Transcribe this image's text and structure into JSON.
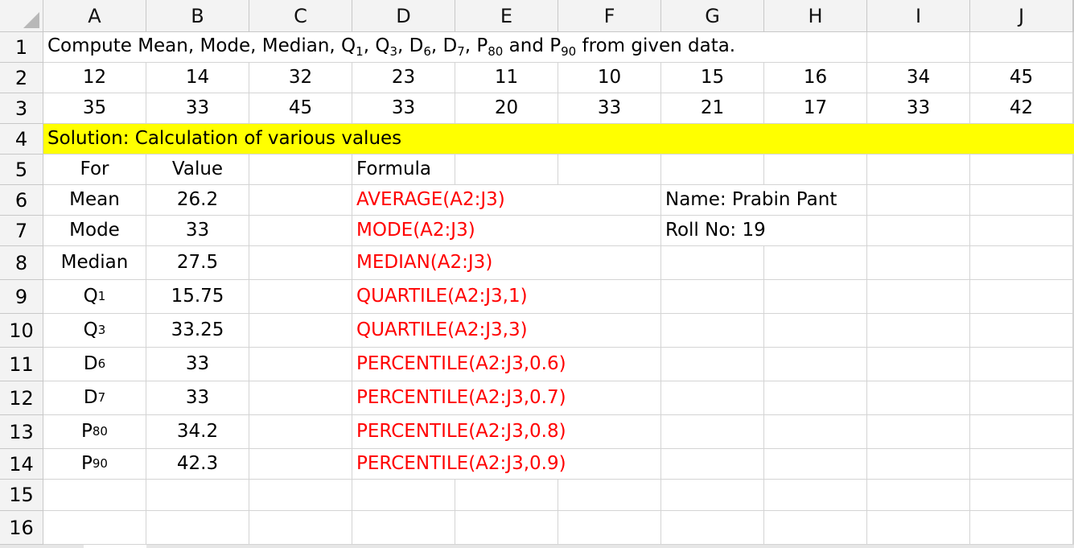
{
  "columns": [
    "A",
    "B",
    "C",
    "D",
    "E",
    "F",
    "G",
    "H",
    "I",
    "J"
  ],
  "rows": [
    "1",
    "2",
    "3",
    "4",
    "5",
    "6",
    "7",
    "8",
    "9",
    "10",
    "11",
    "12",
    "13",
    "14",
    "15",
    "16"
  ],
  "title": {
    "parts": [
      "Compute Mean, Mode, Median, Q",
      "1",
      ", Q",
      "3",
      ", D",
      "6",
      ", D",
      "7",
      ", P",
      "80",
      " and P",
      "90",
      " from given data."
    ]
  },
  "data_row_2": [
    "12",
    "14",
    "32",
    "23",
    "11",
    "10",
    "15",
    "16",
    "34",
    "45"
  ],
  "data_row_3": [
    "35",
    "33",
    "45",
    "33",
    "20",
    "33",
    "21",
    "17",
    "33",
    "42"
  ],
  "solution_label": "Solution: Calculation of various values",
  "headers": {
    "for": "For",
    "value": "Value",
    "formula": "Formula"
  },
  "results": [
    {
      "for": "Mean",
      "sub": "",
      "value": "26.2",
      "formula": "AVERAGE(A2:J3)"
    },
    {
      "for": "Mode",
      "sub": "",
      "value": "33",
      "formula": "MODE(A2:J3)"
    },
    {
      "for": "Median",
      "sub": "",
      "value": "27.5",
      "formula": "MEDIAN(A2:J3)"
    },
    {
      "for": "Q",
      "sub": "1",
      "value": "15.75",
      "formula": "QUARTILE(A2:J3,1)"
    },
    {
      "for": "Q",
      "sub": "3",
      "value": "33.25",
      "formula": "QUARTILE(A2:J3,3)"
    },
    {
      "for": "D",
      "sub": "6",
      "value": "33",
      "formula": "PERCENTILE(A2:J3,0.6)"
    },
    {
      "for": "D",
      "sub": "7",
      "value": "33",
      "formula": "PERCENTILE(A2:J3,0.7)"
    },
    {
      "for": "P",
      "sub": "80",
      "value": "34.2",
      "formula": "PERCENTILE(A2:J3,0.8)"
    },
    {
      "for": "P",
      "sub": "90",
      "value": "42.3",
      "formula": "PERCENTILE(A2:J3,0.9)"
    }
  ],
  "info": {
    "name": "Name: Prabin Pant",
    "roll": "Roll No: 19"
  },
  "colors": {
    "highlight": "#ffff00",
    "formula_text": "#ff0000",
    "header_bg": "#f3f3f3",
    "gridline": "#d4d4d4"
  }
}
